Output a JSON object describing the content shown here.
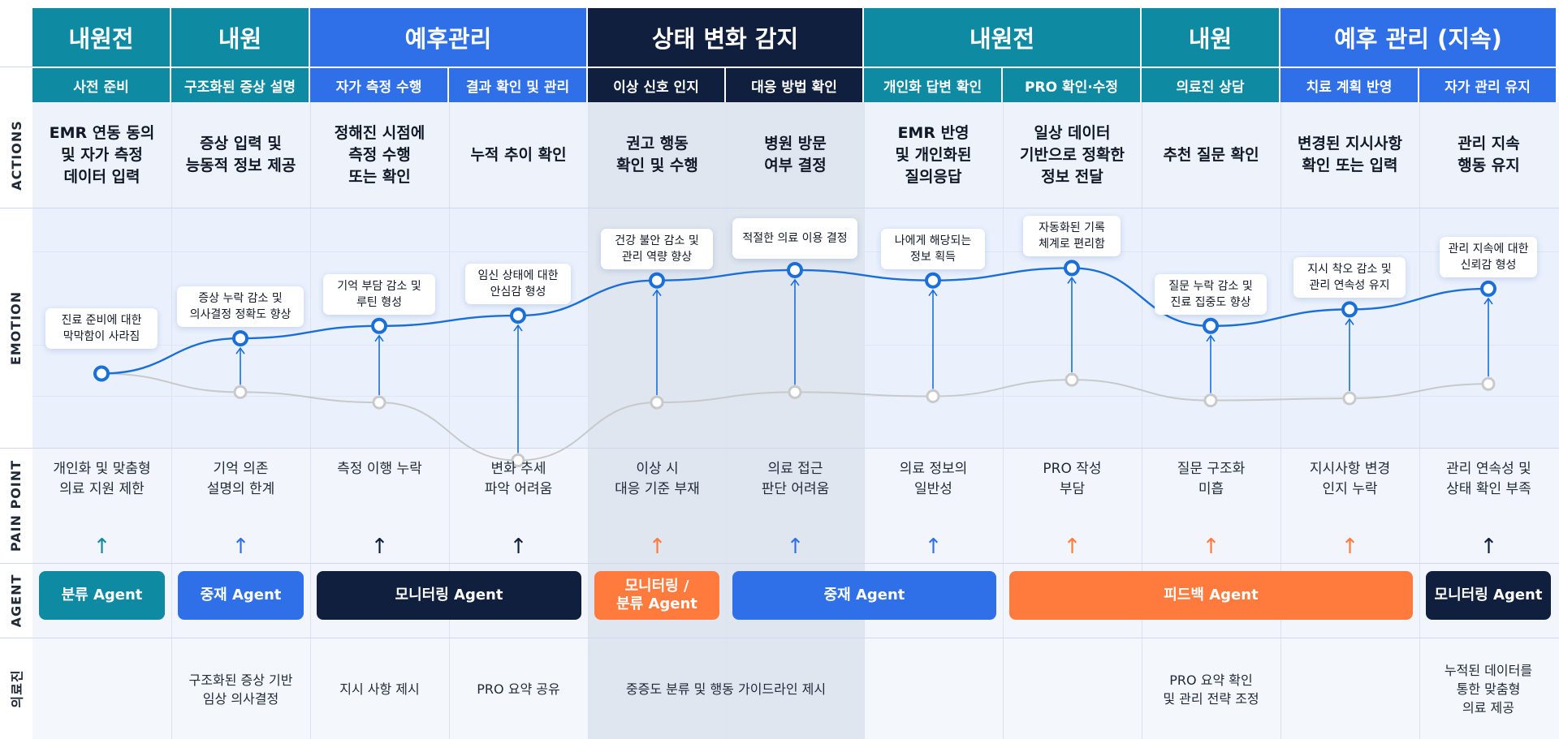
{
  "colors": {
    "teal": "#0e8aa3",
    "blue": "#2f6fe8",
    "navy": "#0f1f3d",
    "orange": "#ff7a3d",
    "emotion_line": "#1a6fd8",
    "baseline_line": "#c9c9c9",
    "detect_bg": "#dfe6ef"
  },
  "phases": [
    {
      "label": "내원전",
      "color": "#0e8aa3"
    },
    {
      "label": "내원",
      "color": "#0e8aa3"
    },
    {
      "label": "예후관리",
      "color": "#2f6fe8"
    },
    {
      "label": "상태 변화 감지",
      "color": "#0f1f3d"
    },
    {
      "label": "내원전",
      "color": "#0e8aa3"
    },
    {
      "label": "내원",
      "color": "#0e8aa3"
    },
    {
      "label": "예후 관리 (지속)",
      "color": "#2f6fe8"
    }
  ],
  "subphases": [
    "사전 준비",
    "구조화된 증상 설명",
    "자가 측정 수행",
    "결과 확인 및 관리",
    "이상 신호 인지",
    "대응 방법 확인",
    "개인화 답변 확인",
    "PRO 확인·수정",
    "의료진 상담",
    "치료 계획 반영",
    "자가 관리 유지"
  ],
  "row_labels": {
    "actions": "ACTIONS",
    "emotion": "EMOTION",
    "pain_point": "PAIN POINT",
    "agent": "AGENT",
    "medical": "의료진"
  },
  "actions": [
    "EMR 연동 동의\n및 자가 측정\n데이터 입력",
    "증상 입력 및\n능동적 정보 제공",
    "정해진 시점에\n측정 수행\n또는 확인",
    "누적 추이 확인",
    "권고 행동\n확인 및 수행",
    "병원 방문\n여부 결정",
    "EMR 반영\n및 개인화된\n질의응답",
    "일상 데이터\n기반으로 정확한\n정보 전달",
    "추천 질문 확인",
    "변경된 지시사항\n확인 또는 입력",
    "관리 지속\n행동 유지"
  ],
  "emotion": {
    "bubbles": [
      "진료 준비에 대한\n막막함이 사라짐",
      "증상 누락 감소 및\n의사결정 정확도 향상",
      "기억 부담 감소 및\n루틴 형성",
      "임신 상태에 대한\n안심감 형성",
      "건강 불안 감소 및\n관리 역량 향상",
      "적절한 의료 이용 결정",
      "나에게 해당되는\n정보 획득",
      "자동화된 기록\n체계로 편리함",
      "질문 누락 감소 및\n진료 집중도 향상",
      "지시 착오 감소 및\n관리 연속성 유지",
      "관리 지속에 대한\n신뢰감 형성"
    ],
    "with_agent": [
      0.21,
      0.38,
      0.44,
      0.49,
      0.66,
      0.71,
      0.66,
      0.72,
      0.44,
      0.52,
      0.62
    ],
    "baseline": [
      0.21,
      0.12,
      0.07,
      -0.21,
      0.07,
      0.12,
      0.1,
      0.18,
      0.08,
      0.09,
      0.16
    ]
  },
  "pain_points": [
    {
      "text": "개인화 및 맞춤형\n의료 지원 제한",
      "arrow_color": "#0e8aa3"
    },
    {
      "text": "기억 의존\n설명의 한계",
      "arrow_color": "#2f6fe8"
    },
    {
      "text": "측정 이행 누락",
      "arrow_color": "#0f1f3d"
    },
    {
      "text": "변화 추세\n파악 어려움",
      "arrow_color": "#0f1f3d"
    },
    {
      "text": "이상 시\n대응 기준 부재",
      "arrow_color": "#ff7a3d"
    },
    {
      "text": "의료 접근\n판단 어려움",
      "arrow_color": "#2f6fe8"
    },
    {
      "text": "의료 정보의\n일반성",
      "arrow_color": "#2f6fe8"
    },
    {
      "text": "PRO 작성\n부담",
      "arrow_color": "#ff7a3d"
    },
    {
      "text": "질문 구조화\n미흡",
      "arrow_color": "#ff7a3d"
    },
    {
      "text": "지시사항 변경\n인지 누락",
      "arrow_color": "#ff7a3d"
    },
    {
      "text": "관리 연속성 및\n상태 확인 부족",
      "arrow_color": "#0f1f3d"
    }
  ],
  "agents": [
    {
      "label": "분류 Agent",
      "color": "#0e8aa3"
    },
    {
      "label": "중재 Agent",
      "color": "#2f6fe8"
    },
    {
      "label": "모니터링 Agent",
      "color": "#0f1f3d"
    },
    {
      "label": "모니터링 /\n분류 Agent",
      "color": "#ff7a3d"
    },
    {
      "label": "중재 Agent",
      "color": "#2f6fe8"
    },
    {
      "label": "피드백 Agent",
      "color": "#ff7a3d"
    },
    {
      "label": "모니터링 Agent",
      "color": "#0f1f3d"
    }
  ],
  "medical": [
    "구조화된 증상 기반\n임상 의사결정",
    "지시 사항 제시",
    "PRO 요약 공유",
    "중증도 분류 및 행동 가이드라인 제시",
    "PRO 요약 확인\n및 관리 전략 조정",
    "누적된 데이터를\n통한 맞춤형\n의료 제공"
  ]
}
